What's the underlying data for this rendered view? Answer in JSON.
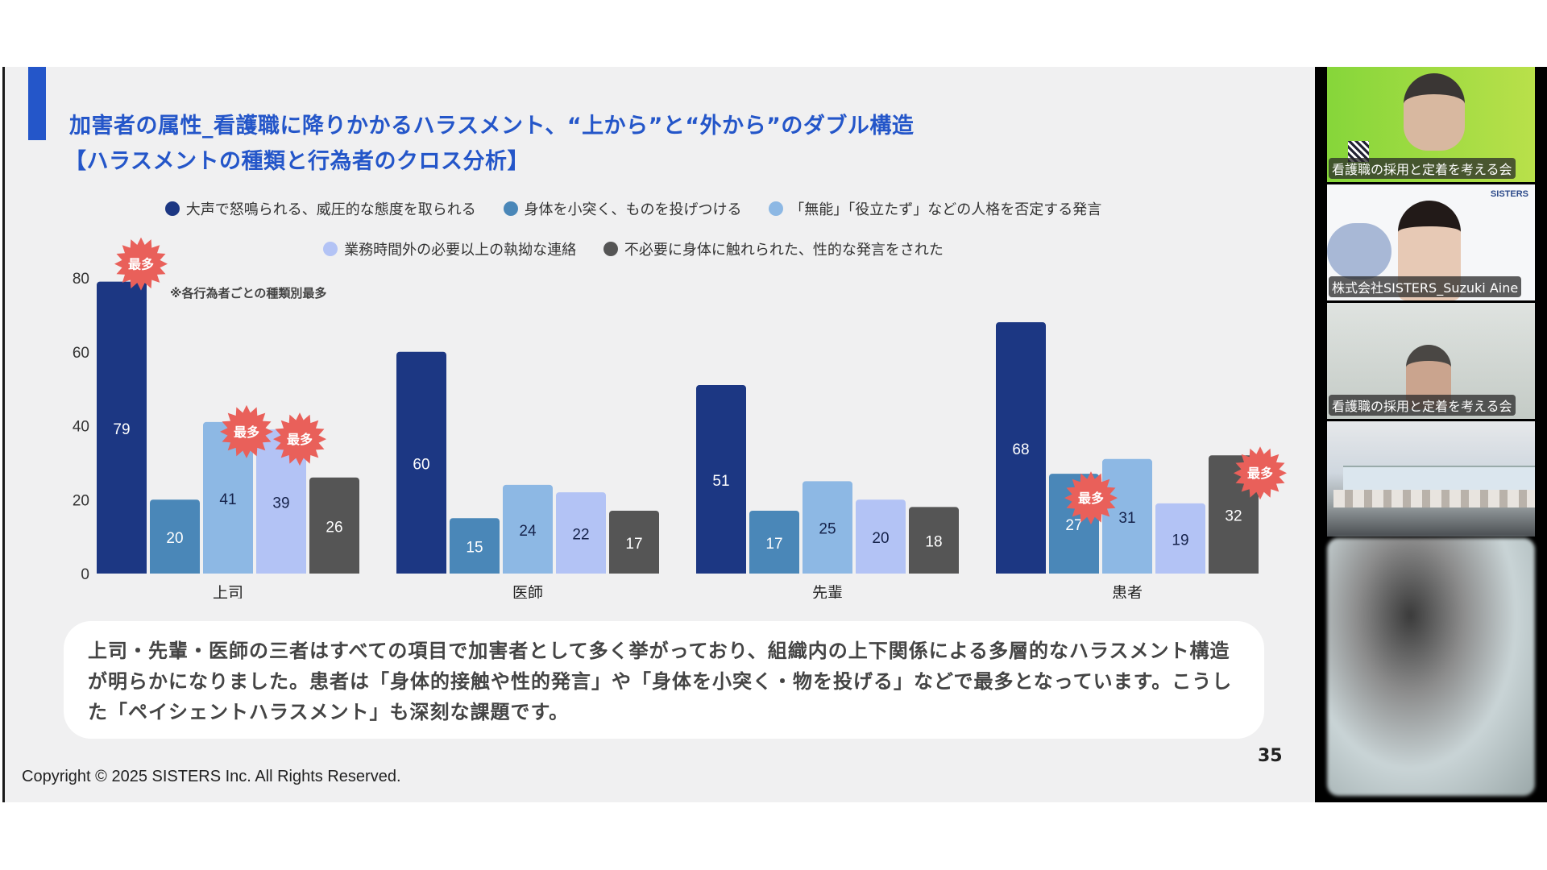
{
  "slide": {
    "title_line1": "加害者の属性_看護職に降りかかるハラスメント、“上から”と“外から”のダブル構造",
    "title_line2": "【ハラスメントの種類と行為者のクロス分析】",
    "note": "※各行為者ごとの種類別最多",
    "summary": "上司・先輩・医師の三者はすべての項目で加害者として多く挙がっており、組織内の上下関係による多層的なハラスメント構造が明らかになりました。患者は「身体的接触や性的発言」や「身体を小突く・物を投げる」などで最多となっています。こうした「ペイシェントハラスメント」も深刻な課題です。",
    "copyright": "Copyright © 2025 SISTERS Inc. All Rights Reserved.",
    "page_number": "35",
    "accent_color": "#2456c9"
  },
  "chart_data": {
    "type": "bar",
    "title": "",
    "xlabel": "",
    "ylabel": "",
    "categories": [
      "上司",
      "医師",
      "先輩",
      "患者"
    ],
    "ylim": [
      0,
      80
    ],
    "yticks": [
      0,
      20,
      40,
      60,
      80
    ],
    "grid": false,
    "legend_placement": "top-center",
    "series": [
      {
        "name": "大声で怒鳴られる、威圧的な態度を取られる",
        "color": "#1c3783",
        "label_color": "#ffffff",
        "values": [
          79,
          60,
          51,
          68
        ]
      },
      {
        "name": "身体を小突く、ものを投げつける",
        "color": "#4a87b8",
        "label_color": "#ffffff",
        "values": [
          20,
          15,
          17,
          27
        ]
      },
      {
        "name": "「無能」「役立たず」などの人格を否定する発言",
        "color": "#8db8e4",
        "label_color": "#15224a",
        "values": [
          41,
          24,
          25,
          31
        ]
      },
      {
        "name": "業務時間外の必要以上の執拗な連絡",
        "color": "#b3c3f5",
        "label_color": "#15224a",
        "values": [
          39,
          22,
          20,
          19
        ]
      },
      {
        "name": "不必要に身体に触れられた、性的な発言をされた",
        "color": "#555555",
        "label_color": "#ffffff",
        "values": [
          26,
          17,
          18,
          32
        ]
      }
    ],
    "annotations": [
      {
        "text": "最多",
        "category": "上司",
        "series": 0
      },
      {
        "text": "最多",
        "category": "上司",
        "series": 2
      },
      {
        "text": "最多",
        "category": "上司",
        "series": 3
      },
      {
        "text": "最多",
        "category": "患者",
        "series": 1
      },
      {
        "text": "最多",
        "category": "患者",
        "series": 4
      }
    ],
    "badge_color": "#e9605a"
  },
  "video": {
    "tiles": [
      {
        "caption": "看護職の採用と定着を考える会"
      },
      {
        "caption": "株式会社SISTERS_Suzuki Aine",
        "logo": "SISTERS"
      },
      {
        "caption": "看護職の採用と定着を考える会"
      },
      {
        "caption": ""
      },
      {
        "caption": ""
      }
    ]
  }
}
